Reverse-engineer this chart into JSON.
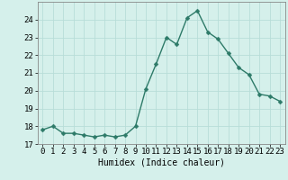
{
  "x": [
    0,
    1,
    2,
    3,
    4,
    5,
    6,
    7,
    8,
    9,
    10,
    11,
    12,
    13,
    14,
    15,
    16,
    17,
    18,
    19,
    20,
    21,
    22,
    23
  ],
  "y": [
    17.8,
    18.0,
    17.6,
    17.6,
    17.5,
    17.4,
    17.5,
    17.4,
    17.5,
    18.0,
    20.1,
    21.5,
    23.0,
    22.6,
    24.1,
    24.5,
    23.3,
    22.9,
    22.1,
    21.3,
    20.9,
    19.8,
    19.7,
    19.4
  ],
  "line_color": "#2d7a68",
  "marker_color": "#2d7a68",
  "bg_color": "#d5f0eb",
  "grid_color": "#b8ddd8",
  "title": "",
  "xlabel": "Humidex (Indice chaleur)",
  "ylabel": "",
  "xlim": [
    -0.5,
    23.5
  ],
  "ylim": [
    17.0,
    25.0
  ],
  "yticks": [
    17,
    18,
    19,
    20,
    21,
    22,
    23,
    24
  ],
  "xticks": [
    0,
    1,
    2,
    3,
    4,
    5,
    6,
    7,
    8,
    9,
    10,
    11,
    12,
    13,
    14,
    15,
    16,
    17,
    18,
    19,
    20,
    21,
    22,
    23
  ],
  "xlabel_fontsize": 7,
  "tick_fontsize": 6.5,
  "line_width": 1.0,
  "marker_size": 2.5
}
